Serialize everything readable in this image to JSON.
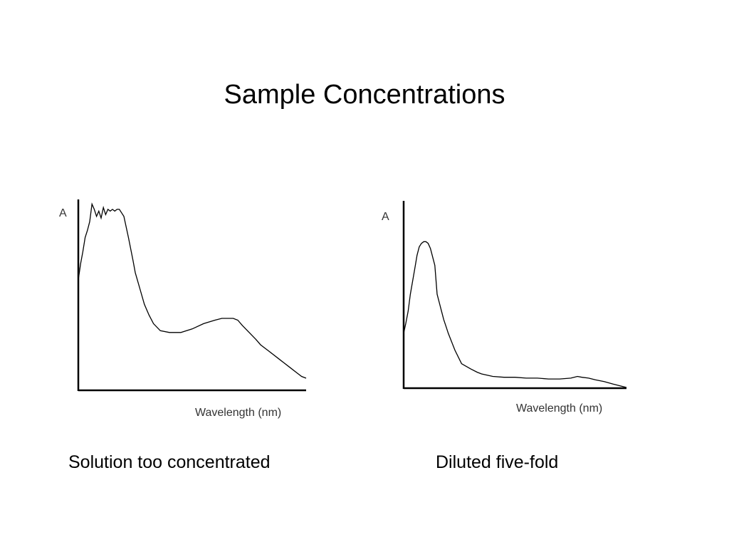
{
  "slide": {
    "title": "Sample Concentrations"
  },
  "chart_data": [
    {
      "type": "line",
      "caption": "Solution too concentrated",
      "xlabel": "Wavelength (nm)",
      "ylabel": "A",
      "xlim": [
        0,
        1
      ],
      "ylim": [
        0,
        1
      ],
      "grid": false,
      "ticks": false,
      "series": [
        {
          "x": [
            0.0,
            0.01,
            0.02,
            0.03,
            0.04,
            0.05,
            0.06,
            0.07,
            0.08,
            0.09,
            0.1,
            0.11,
            0.12,
            0.13,
            0.14,
            0.15,
            0.16,
            0.17,
            0.18,
            0.19,
            0.2,
            0.22,
            0.24,
            0.25,
            0.27,
            0.29,
            0.31,
            0.33,
            0.36,
            0.4,
            0.45,
            0.5,
            0.55,
            0.6,
            0.63,
            0.65,
            0.68,
            0.7,
            0.72,
            0.75,
            0.78,
            0.8,
            0.84,
            0.88,
            0.9,
            0.93,
            0.96,
            0.98,
            1.0
          ],
          "y": [
            0.56,
            0.65,
            0.72,
            0.8,
            0.84,
            0.89,
            0.99,
            0.96,
            0.92,
            0.95,
            0.91,
            0.97,
            0.93,
            0.96,
            0.95,
            0.96,
            0.95,
            0.96,
            0.96,
            0.94,
            0.92,
            0.8,
            0.67,
            0.6,
            0.51,
            0.42,
            0.36,
            0.31,
            0.27,
            0.26,
            0.26,
            0.28,
            0.31,
            0.33,
            0.34,
            0.34,
            0.34,
            0.33,
            0.3,
            0.26,
            0.22,
            0.19,
            0.15,
            0.11,
            0.09,
            0.06,
            0.03,
            0.01,
            0.0
          ]
        }
      ]
    },
    {
      "type": "line",
      "caption": "Diluted five-fold",
      "xlabel": "Wavelength (nm)",
      "ylabel": "A",
      "xlim": [
        0,
        1
      ],
      "ylim": [
        0,
        1
      ],
      "grid": false,
      "ticks": false,
      "series": [
        {
          "x": [
            0.0,
            0.01,
            0.02,
            0.03,
            0.05,
            0.06,
            0.07,
            0.08,
            0.09,
            0.1,
            0.11,
            0.12,
            0.13,
            0.14,
            0.15,
            0.16,
            0.17,
            0.18,
            0.19,
            0.2,
            0.23,
            0.26,
            0.3,
            0.33,
            0.35,
            0.4,
            0.45,
            0.5,
            0.55,
            0.6,
            0.65,
            0.7,
            0.75,
            0.78,
            0.8,
            0.83,
            0.86,
            0.9,
            0.94,
            0.97,
            1.0
          ],
          "y": [
            0.32,
            0.38,
            0.45,
            0.55,
            0.7,
            0.78,
            0.83,
            0.85,
            0.86,
            0.86,
            0.85,
            0.82,
            0.77,
            0.72,
            0.55,
            0.5,
            0.45,
            0.4,
            0.36,
            0.32,
            0.22,
            0.14,
            0.11,
            0.09,
            0.08,
            0.065,
            0.06,
            0.06,
            0.055,
            0.055,
            0.05,
            0.05,
            0.055,
            0.065,
            0.06,
            0.055,
            0.045,
            0.035,
            0.02,
            0.01,
            0.0
          ]
        }
      ]
    }
  ]
}
